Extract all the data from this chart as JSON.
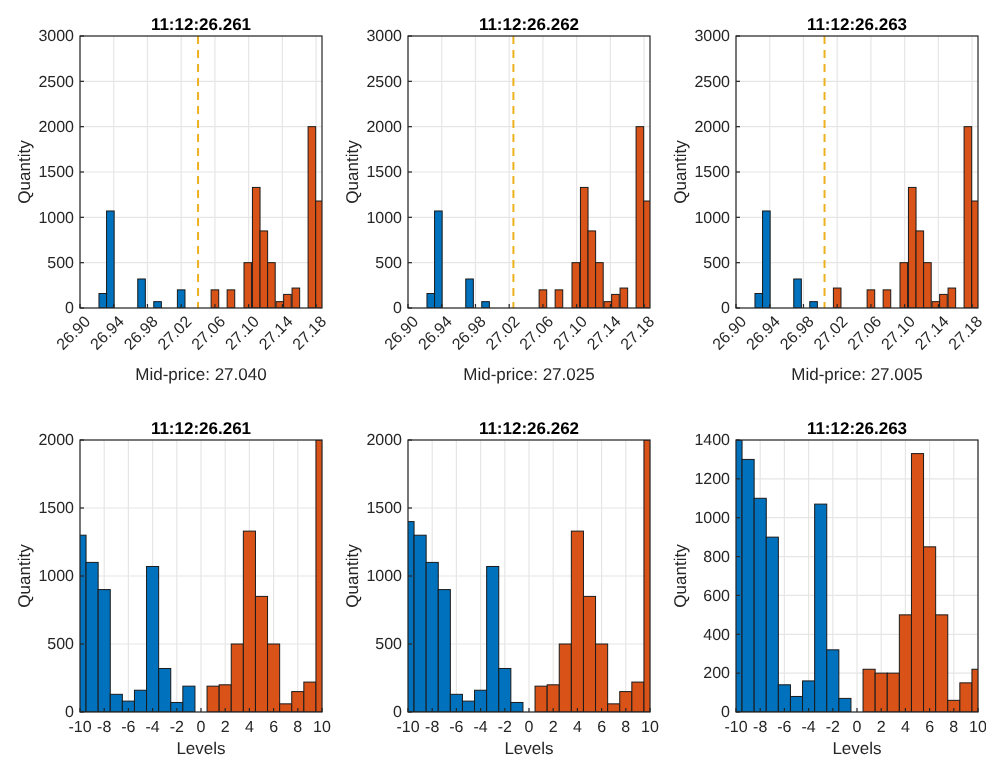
{
  "chart_data": [
    {
      "type": "bar",
      "title": "11:12:26.261",
      "xlabel": "Mid-price: 27.040",
      "ylabel": "Quantity",
      "xlim": [
        26.9,
        27.187
      ],
      "xticks": [
        {
          "value": 26.9,
          "label": "26.90"
        },
        {
          "value": 26.94,
          "label": "26.94"
        },
        {
          "value": 26.98,
          "label": "26.98"
        },
        {
          "value": 27.02,
          "label": "27.02"
        },
        {
          "value": 27.06,
          "label": "27.06"
        },
        {
          "value": 27.1,
          "label": "27.10"
        },
        {
          "value": 27.14,
          "label": "27.14"
        },
        {
          "value": 27.18,
          "label": "27.18"
        }
      ],
      "ylim": [
        0,
        3000
      ],
      "yticks": [
        0,
        500,
        1000,
        1500,
        2000,
        2500,
        3000
      ],
      "grid": true,
      "ref_lines": [
        {
          "axis": "x",
          "value": 27.04,
          "color": "#edb120",
          "line_style": "dashed"
        }
      ],
      "series": [
        {
          "color": "#0072bd",
          "x": [
            26.927,
            26.936,
            26.973,
            26.992,
            27.02
          ],
          "values": [
            160,
            1070,
            320,
            70,
            200
          ]
        },
        {
          "color": "#d95319",
          "x": [
            27.06,
            27.079,
            27.099,
            27.109,
            27.118,
            27.127,
            27.137,
            27.146,
            27.156,
            27.175,
            27.184
          ],
          "values": [
            200,
            200,
            500,
            1330,
            850,
            500,
            70,
            150,
            220,
            2000,
            1180
          ]
        }
      ]
    },
    {
      "type": "bar",
      "title": "11:12:26.262",
      "xlabel": "Mid-price: 27.025",
      "ylabel": "Quantity",
      "xlim": [
        26.9,
        27.187
      ],
      "xticks": [
        {
          "value": 26.9,
          "label": "26.90"
        },
        {
          "value": 26.94,
          "label": "26.94"
        },
        {
          "value": 26.98,
          "label": "26.98"
        },
        {
          "value": 27.02,
          "label": "27.02"
        },
        {
          "value": 27.06,
          "label": "27.06"
        },
        {
          "value": 27.1,
          "label": "27.10"
        },
        {
          "value": 27.14,
          "label": "27.14"
        },
        {
          "value": 27.18,
          "label": "27.18"
        }
      ],
      "ylim": [
        0,
        3000
      ],
      "yticks": [
        0,
        500,
        1000,
        1500,
        2000,
        2500,
        3000
      ],
      "grid": true,
      "ref_lines": [
        {
          "axis": "x",
          "value": 27.025,
          "color": "#edb120",
          "line_style": "dashed"
        }
      ],
      "series": [
        {
          "color": "#0072bd",
          "x": [
            26.927,
            26.936,
            26.973,
            26.992
          ],
          "values": [
            160,
            1070,
            320,
            70
          ]
        },
        {
          "color": "#d95319",
          "x": [
            27.06,
            27.079,
            27.099,
            27.109,
            27.118,
            27.127,
            27.137,
            27.146,
            27.156,
            27.175,
            27.184
          ],
          "values": [
            200,
            200,
            500,
            1330,
            850,
            500,
            70,
            150,
            220,
            2000,
            1180
          ]
        }
      ]
    },
    {
      "type": "bar",
      "title": "11:12:26.263",
      "xlabel": "Mid-price: 27.005",
      "ylabel": "Quantity",
      "xlim": [
        26.9,
        27.187
      ],
      "xticks": [
        {
          "value": 26.9,
          "label": "26.90"
        },
        {
          "value": 26.94,
          "label": "26.94"
        },
        {
          "value": 26.98,
          "label": "26.98"
        },
        {
          "value": 27.02,
          "label": "27.02"
        },
        {
          "value": 27.06,
          "label": "27.06"
        },
        {
          "value": 27.1,
          "label": "27.10"
        },
        {
          "value": 27.14,
          "label": "27.14"
        },
        {
          "value": 27.18,
          "label": "27.18"
        }
      ],
      "ylim": [
        0,
        3000
      ],
      "yticks": [
        0,
        500,
        1000,
        1500,
        2000,
        2500,
        3000
      ],
      "grid": true,
      "ref_lines": [
        {
          "axis": "x",
          "value": 27.005,
          "color": "#edb120",
          "line_style": "dashed"
        }
      ],
      "series": [
        {
          "color": "#0072bd",
          "x": [
            26.927,
            26.936,
            26.973,
            26.992
          ],
          "values": [
            160,
            1070,
            320,
            70
          ]
        },
        {
          "color": "#d95319",
          "x": [
            27.02,
            27.06,
            27.079,
            27.099,
            27.109,
            27.118,
            27.127,
            27.137,
            27.146,
            27.156,
            27.175,
            27.184
          ],
          "values": [
            220,
            200,
            200,
            500,
            1330,
            850,
            500,
            70,
            150,
            220,
            2000,
            1180
          ]
        }
      ]
    },
    {
      "type": "bar",
      "title": "11:12:26.261",
      "xlabel": "Levels",
      "ylabel": "Quantity",
      "xlim": [
        -10,
        10
      ],
      "xticks": [
        -10,
        -8,
        -6,
        -4,
        -2,
        0,
        2,
        4,
        6,
        8,
        10
      ],
      "ylim": [
        0,
        2000
      ],
      "yticks": [
        0,
        500,
        1000,
        1500,
        2000
      ],
      "grid": true,
      "series": [
        {
          "color": "#0072bd",
          "x": [
            -10,
            -9,
            -8,
            -7,
            -6,
            -5,
            -4,
            -3,
            -2,
            -1
          ],
          "values": [
            1300,
            1100,
            900,
            130,
            80,
            160,
            1070,
            320,
            70,
            190
          ]
        },
        {
          "color": "#d95319",
          "x": [
            1,
            2,
            3,
            4,
            5,
            6,
            7,
            8,
            9,
            10
          ],
          "values": [
            190,
            200,
            500,
            1330,
            850,
            500,
            60,
            150,
            220,
            2000
          ]
        }
      ]
    },
    {
      "type": "bar",
      "title": "11:12:26.262",
      "xlabel": "Levels",
      "ylabel": "Quantity",
      "xlim": [
        -10,
        10
      ],
      "xticks": [
        -10,
        -8,
        -6,
        -4,
        -2,
        0,
        2,
        4,
        6,
        8,
        10
      ],
      "ylim": [
        0,
        2000
      ],
      "yticks": [
        0,
        500,
        1000,
        1500,
        2000
      ],
      "grid": true,
      "series": [
        {
          "color": "#0072bd",
          "x": [
            -10,
            -9,
            -8,
            -7,
            -6,
            -5,
            -4,
            -3,
            -2,
            -1
          ],
          "values": [
            1400,
            1300,
            1100,
            900,
            130,
            80,
            160,
            1070,
            320,
            70
          ]
        },
        {
          "color": "#d95319",
          "x": [
            1,
            2,
            3,
            4,
            5,
            6,
            7,
            8,
            9,
            10
          ],
          "values": [
            190,
            200,
            500,
            1330,
            850,
            500,
            60,
            150,
            220,
            2000
          ]
        }
      ]
    },
    {
      "type": "bar",
      "title": "11:12:26.263",
      "xlabel": "Levels",
      "ylabel": "Quantity",
      "xlim": [
        -10,
        10
      ],
      "xticks": [
        -10,
        -8,
        -6,
        -4,
        -2,
        0,
        2,
        4,
        6,
        8,
        10
      ],
      "ylim": [
        0,
        1400
      ],
      "yticks": [
        0,
        200,
        400,
        600,
        800,
        1000,
        1200,
        1400
      ],
      "grid": true,
      "series": [
        {
          "color": "#0072bd",
          "x": [
            -10,
            -9,
            -8,
            -7,
            -6,
            -5,
            -4,
            -3,
            -2,
            -1
          ],
          "values": [
            1400,
            1300,
            1100,
            900,
            140,
            80,
            160,
            1070,
            320,
            70
          ]
        },
        {
          "color": "#d95319",
          "x": [
            1,
            2,
            3,
            4,
            5,
            6,
            7,
            8,
            9,
            10
          ],
          "values": [
            220,
            200,
            200,
            500,
            1330,
            850,
            500,
            60,
            150,
            220
          ]
        }
      ]
    }
  ]
}
